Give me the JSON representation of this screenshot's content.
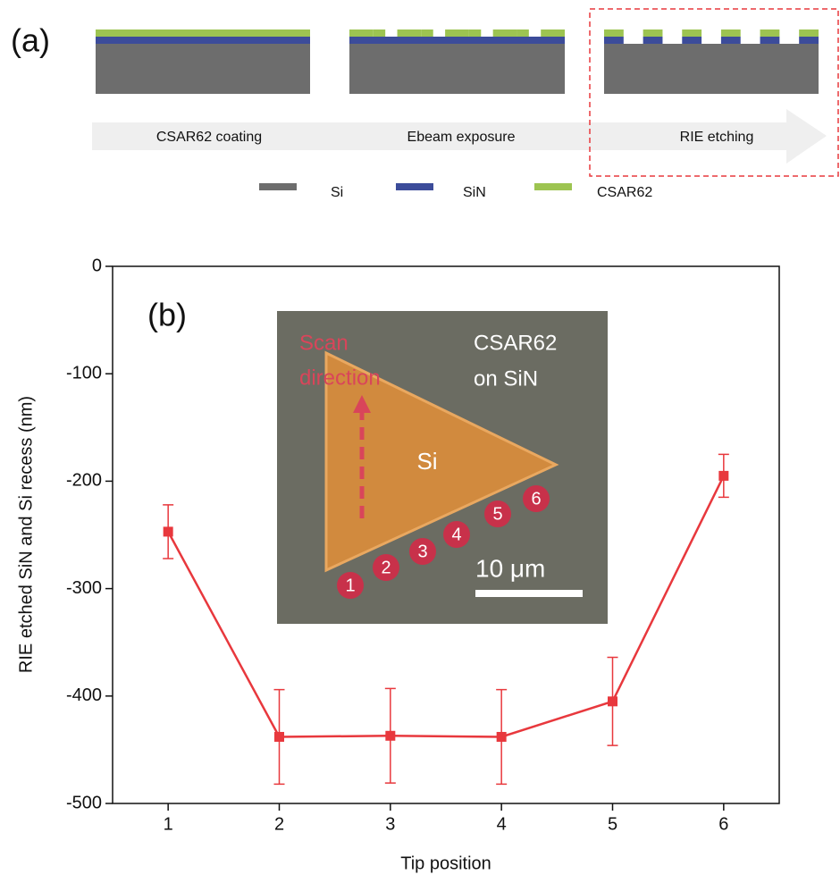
{
  "panel_a": {
    "label": "(a)",
    "steps": [
      "CSAR62 coating",
      "Ebeam exposure",
      "RIE etching"
    ],
    "legend": [
      {
        "name": "Si",
        "color": "#6d6d6d"
      },
      {
        "name": "SiN",
        "color": "#3c4c9a"
      },
      {
        "name": "CSAR62",
        "color": "#9dc451"
      }
    ]
  },
  "chart_data": {
    "type": "line",
    "panel_label": "(b)",
    "xlabel": "Tip position",
    "ylabel": "RIE etched SiN and Si recess (nm)",
    "x": [
      1,
      2,
      3,
      4,
      5,
      6
    ],
    "values": [
      -247,
      -438,
      -437,
      -438,
      -405,
      -195
    ],
    "errors": [
      25,
      44,
      44,
      44,
      41,
      20
    ],
    "color": "#e8383d",
    "xlim": [
      0.5,
      6.5
    ],
    "ylim": [
      -500,
      0
    ],
    "xticks": [
      1,
      2,
      3,
      4,
      5,
      6
    ],
    "yticks": [
      -500,
      -400,
      -300,
      -200,
      -100,
      0
    ],
    "inset": {
      "scan": [
        "Scan",
        "direction"
      ],
      "material": [
        "CSAR62",
        "on SiN"
      ],
      "region": "Si",
      "scale": "10 μm",
      "markers": [
        "1",
        "2",
        "3",
        "4",
        "5",
        "6"
      ]
    }
  }
}
